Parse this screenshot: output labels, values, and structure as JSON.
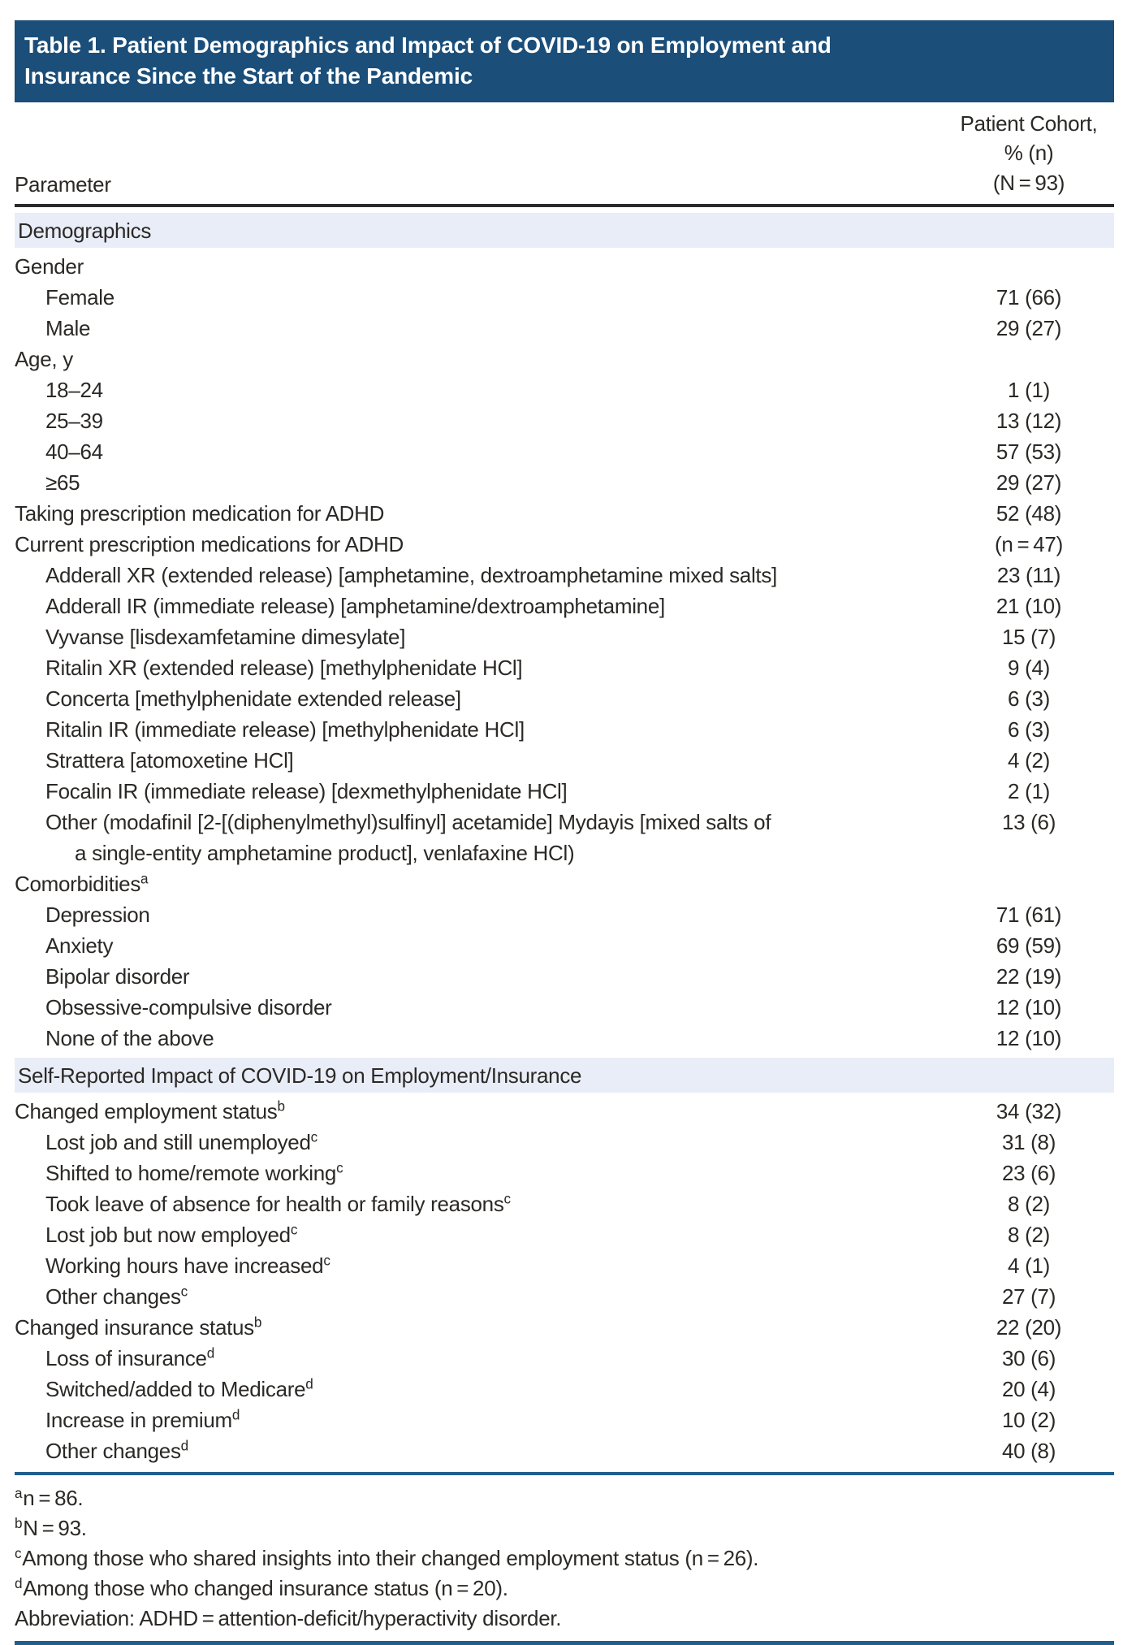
{
  "table": {
    "title": "Table 1. Patient Demographics and Impact of COVID-19 on Employment and\nInsurance Since the Start of the Pandemic",
    "columns": {
      "parameter": "Parameter",
      "cohort": "Patient Cohort,\n% (n)\n(N = 93)"
    },
    "rows": [
      {
        "type": "section",
        "label": "Demographics"
      },
      {
        "type": "row",
        "level": 0,
        "label": "Gender",
        "value": ""
      },
      {
        "type": "row",
        "level": 1,
        "label": "Female",
        "value": "71 (66)"
      },
      {
        "type": "row",
        "level": 1,
        "label": "Male",
        "value": "29 (27)"
      },
      {
        "type": "row",
        "level": 0,
        "label": "Age, y",
        "value": ""
      },
      {
        "type": "row",
        "level": 1,
        "label": "18–24",
        "value": "1 (1)"
      },
      {
        "type": "row",
        "level": 1,
        "label": "25–39",
        "value": "13 (12)"
      },
      {
        "type": "row",
        "level": 1,
        "label": "40–64",
        "value": "57 (53)"
      },
      {
        "type": "row",
        "level": 1,
        "label": "≥65",
        "value": "29 (27)"
      },
      {
        "type": "row",
        "level": 0,
        "label": "Taking prescription medication for ADHD",
        "value": "52 (48)"
      },
      {
        "type": "row",
        "level": 0,
        "label": "Current prescription medications for ADHD",
        "value": "(n = 47)"
      },
      {
        "type": "row",
        "level": 1,
        "label": "Adderall XR (extended release) [amphetamine, dextroamphetamine mixed salts]",
        "value": "23 (11)"
      },
      {
        "type": "row",
        "level": 1,
        "label": "Adderall IR (immediate release) [amphetamine/dextroamphetamine]",
        "value": "21 (10)"
      },
      {
        "type": "row",
        "level": 1,
        "label": "Vyvanse [lisdexamfetamine dimesylate]",
        "value": "15 (7)"
      },
      {
        "type": "row",
        "level": 1,
        "label": "Ritalin XR (extended release) [methylphenidate HCl]",
        "value": "9 (4)"
      },
      {
        "type": "row",
        "level": 1,
        "label": "Concerta [methylphenidate extended release]",
        "value": "6 (3)"
      },
      {
        "type": "row",
        "level": 1,
        "label": "Ritalin IR (immediate release) [methylphenidate HCl]",
        "value": "6 (3)"
      },
      {
        "type": "row",
        "level": 1,
        "label": "Strattera [atomoxetine HCl]",
        "value": "4 (2)"
      },
      {
        "type": "row",
        "level": 1,
        "label": "Focalin IR (immediate release) [dexmethylphenidate HCl]",
        "value": "2 (1)"
      },
      {
        "type": "row",
        "level": 1,
        "label": "Other (modafinil [2-[(diphenylmethyl)sulfinyl] acetamide] Mydayis [mixed salts of",
        "value": "13 (6)"
      },
      {
        "type": "row",
        "level": 2,
        "label": "a single-entity amphetamine product], venlafaxine HCl)",
        "value": ""
      },
      {
        "type": "row",
        "level": 0,
        "label": "Comorbidities",
        "sup": "a",
        "value": ""
      },
      {
        "type": "row",
        "level": 1,
        "label": "Depression",
        "value": "71 (61)"
      },
      {
        "type": "row",
        "level": 1,
        "label": "Anxiety",
        "value": "69 (59)"
      },
      {
        "type": "row",
        "level": 1,
        "label": "Bipolar disorder",
        "value": "22 (19)"
      },
      {
        "type": "row",
        "level": 1,
        "label": "Obsessive-compulsive disorder",
        "value": "12 (10)"
      },
      {
        "type": "row",
        "level": 1,
        "label": "None of the above",
        "value": "12 (10)"
      },
      {
        "type": "section",
        "label": "Self-Reported Impact of COVID-19 on Employment/Insurance"
      },
      {
        "type": "row",
        "level": 0,
        "label": "Changed employment status",
        "sup": "b",
        "value": "34 (32)"
      },
      {
        "type": "row",
        "level": 1,
        "label": "Lost job and still unemployed",
        "sup": "c",
        "value": "31 (8)"
      },
      {
        "type": "row",
        "level": 1,
        "label": "Shifted to home/remote working",
        "sup": "c",
        "value": "23 (6)"
      },
      {
        "type": "row",
        "level": 1,
        "label": "Took leave of absence for health or family reasons",
        "sup": "c",
        "value": "8 (2)"
      },
      {
        "type": "row",
        "level": 1,
        "label": "Lost job but now employed",
        "sup": "c",
        "value": "8 (2)"
      },
      {
        "type": "row",
        "level": 1,
        "label": "Working hours have increased",
        "sup": "c",
        "value": "4 (1)"
      },
      {
        "type": "row",
        "level": 1,
        "label": "Other changes",
        "sup": "c",
        "value": "27 (7)"
      },
      {
        "type": "row",
        "level": 0,
        "label": "Changed insurance status",
        "sup": "b",
        "value": "22 (20)"
      },
      {
        "type": "row",
        "level": 1,
        "label": "Loss of insurance",
        "sup": "d",
        "value": "30 (6)"
      },
      {
        "type": "row",
        "level": 1,
        "label": "Switched/added to Medicare",
        "sup": "d",
        "value": "20 (4)"
      },
      {
        "type": "row",
        "level": 1,
        "label": "Increase in premium",
        "sup": "d",
        "value": "10 (2)"
      },
      {
        "type": "row",
        "level": 1,
        "label": "Other changes",
        "sup": "d",
        "value": "40 (8)"
      }
    ],
    "footnotes": [
      {
        "sup": "a",
        "text": "n = 86."
      },
      {
        "sup": "b",
        "text": "N = 93."
      },
      {
        "sup": "c",
        "text": "Among those who shared insights into their changed employment status (n = 26)."
      },
      {
        "sup": "d",
        "text": "Among those who changed insurance status (n = 20)."
      },
      {
        "sup": "",
        "text": "Abbreviation: ADHD = attention-deficit/hyperactivity disorder."
      }
    ],
    "colors": {
      "header_bg": "#1b4e79",
      "header_text": "#ffffff",
      "section_band_bg": "#e9edf7",
      "rule_blue": "#1f5f8f",
      "body_text": "#2b2926"
    }
  }
}
